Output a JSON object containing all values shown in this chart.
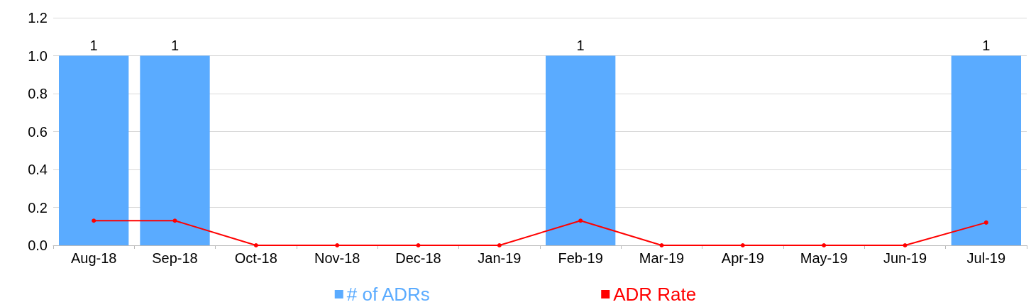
{
  "chart_data": {
    "type": "bar",
    "categories": [
      "Aug-18",
      "Sep-18",
      "Oct-18",
      "Nov-18",
      "Dec-18",
      "Jan-19",
      "Feb-19",
      "Mar-19",
      "Apr-19",
      "May-19",
      "Jun-19",
      "Jul-19"
    ],
    "series": [
      {
        "name": "# of ADRs",
        "color": "#5aabff",
        "values": [
          1,
          1,
          0,
          0,
          0,
          0,
          1,
          0,
          0,
          0,
          0,
          1
        ],
        "value_labels": [
          "1",
          "1",
          null,
          null,
          null,
          null,
          "1",
          null,
          null,
          null,
          null,
          "1"
        ]
      },
      {
        "name": "ADR Rate",
        "type": "line",
        "color": "#ff0000",
        "marker": "circle",
        "values": [
          0.13,
          0.13,
          0,
          0,
          0,
          0,
          0.13,
          0,
          0,
          0,
          0,
          0.12
        ]
      }
    ],
    "ylim": [
      0,
      1.2
    ],
    "yticks": [
      {
        "value": 0,
        "label": "0.0"
      },
      {
        "value": 0.2,
        "label": "0.2"
      },
      {
        "value": 0.4,
        "label": "0.4"
      },
      {
        "value": 0.6,
        "label": "0.6"
      },
      {
        "value": 0.8,
        "label": "0.8"
      },
      {
        "value": 1,
        "label": "1.0"
      },
      {
        "value": 1.2,
        "label": "1.2"
      }
    ],
    "grid": "y",
    "legend": "bottom"
  }
}
